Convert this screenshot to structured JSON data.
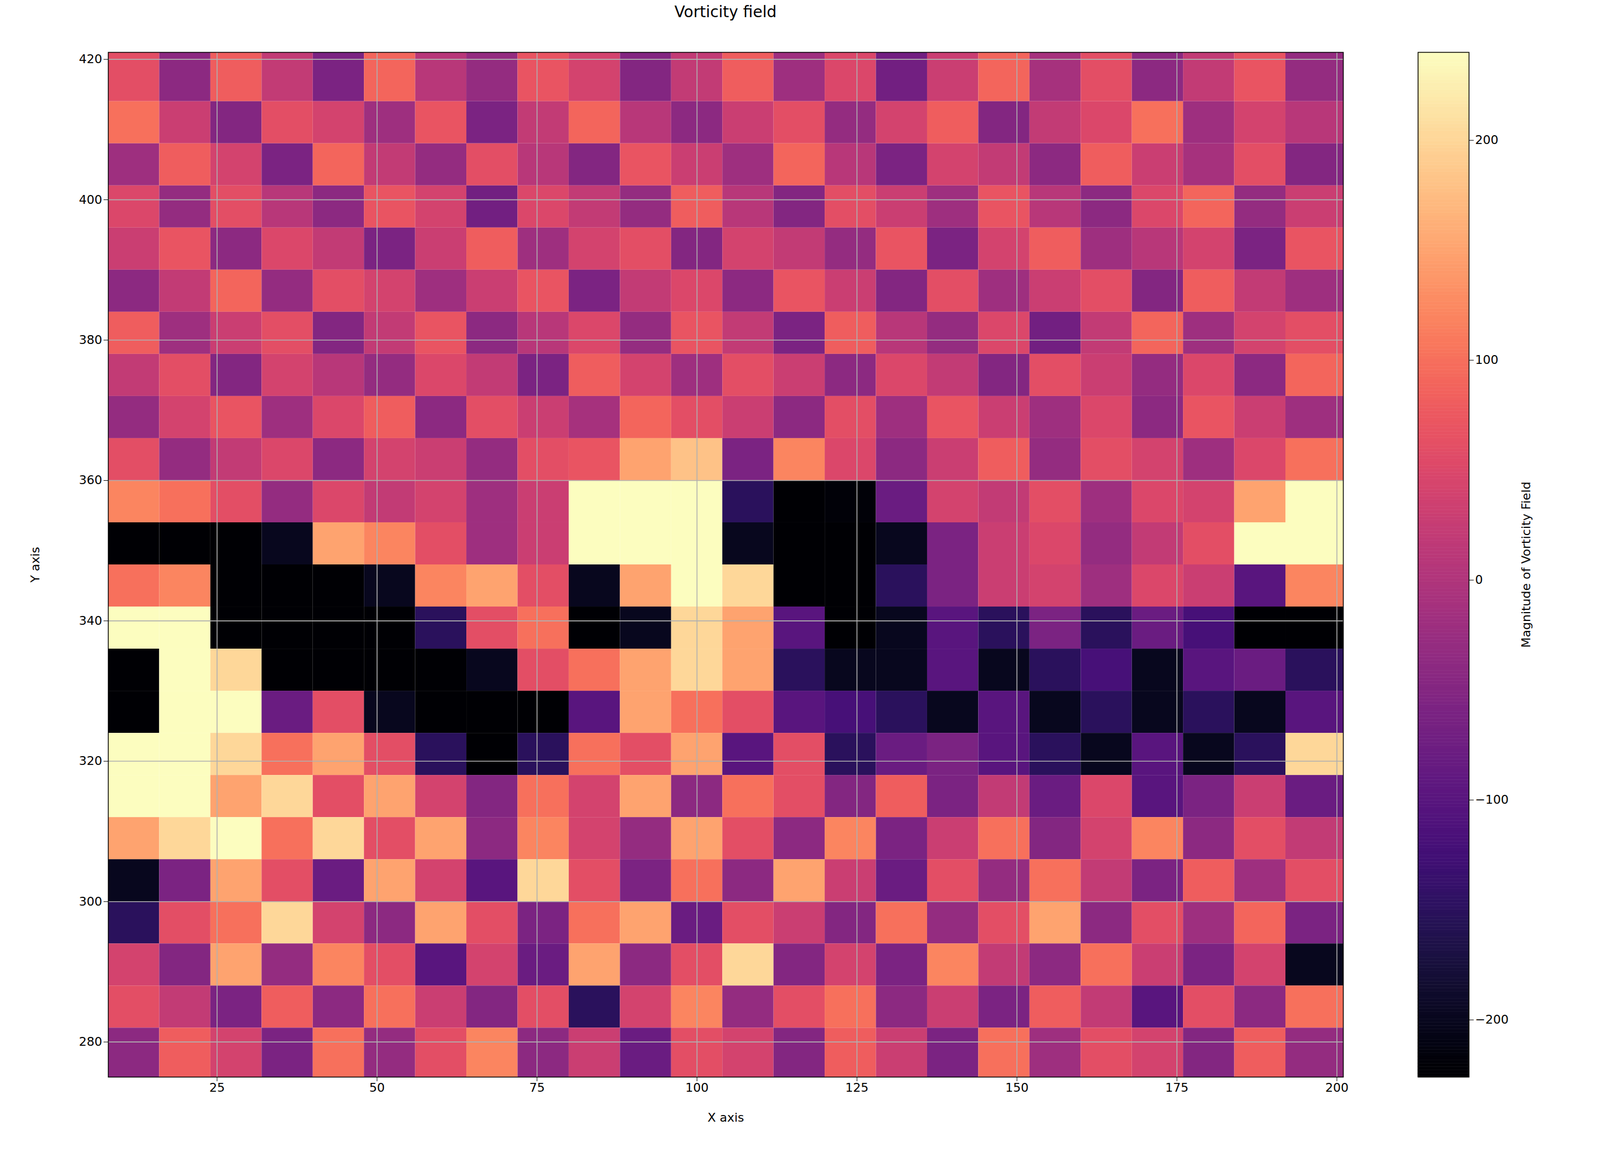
{
  "chart_data": {
    "type": "heatmap",
    "title": "Vorticity field",
    "x_label": "X axis",
    "y_label": "Y axis",
    "xlim": [
      8,
      201
    ],
    "ylim": [
      275,
      421
    ],
    "xticks": [
      25,
      50,
      75,
      100,
      125,
      150,
      175,
      200
    ],
    "yticks": [
      280,
      300,
      320,
      340,
      360,
      380,
      400,
      420
    ],
    "grid": true,
    "color": "magma",
    "color_label": "Magnitude of Vorticity Field",
    "color_range": [
      -226,
      240
    ],
    "color_ticks": [
      -200,
      -100,
      0,
      100,
      200
    ],
    "x_edges": [
      8,
      16,
      24,
      32,
      40,
      48,
      56,
      64,
      72,
      80,
      88,
      96,
      104,
      112,
      120,
      128,
      136,
      144,
      152,
      160,
      168,
      176,
      184,
      192,
      201
    ],
    "y_edges": [
      421,
      414,
      408,
      402,
      396,
      390,
      384,
      378,
      372,
      366,
      360,
      354,
      348,
      342,
      336,
      330,
      324,
      318,
      312,
      306,
      300,
      294,
      288,
      282,
      275
    ],
    "values": [
      [
        60,
        -40,
        80,
        20,
        -60,
        90,
        10,
        -30,
        70,
        40,
        -50,
        20,
        80,
        -20,
        50,
        -70,
        30,
        90,
        -10,
        60,
        -40,
        20,
        70,
        -30
      ],
      [
        100,
        30,
        -50,
        60,
        40,
        -20,
        70,
        -60,
        20,
        90,
        10,
        -40,
        30,
        60,
        -30,
        40,
        80,
        -50,
        20,
        50,
        100,
        -20,
        40,
        10
      ],
      [
        -20,
        80,
        40,
        -60,
        90,
        20,
        -30,
        60,
        10,
        -50,
        70,
        30,
        -20,
        90,
        10,
        -60,
        40,
        20,
        -40,
        80,
        30,
        -10,
        60,
        -50
      ],
      [
        50,
        -30,
        60,
        10,
        -40,
        70,
        40,
        -70,
        50,
        20,
        -30,
        80,
        10,
        -50,
        60,
        30,
        -20,
        70,
        10,
        -40,
        50,
        90,
        -30,
        30
      ],
      [
        30,
        70,
        -40,
        50,
        20,
        -60,
        30,
        80,
        -20,
        40,
        60,
        -50,
        40,
        20,
        -30,
        70,
        -60,
        40,
        80,
        -20,
        10,
        40,
        -60,
        70
      ],
      [
        -40,
        20,
        90,
        -30,
        60,
        40,
        -20,
        30,
        70,
        -60,
        20,
        50,
        -40,
        70,
        30,
        -50,
        60,
        -20,
        30,
        60,
        -50,
        80,
        20,
        -20
      ],
      [
        80,
        -20,
        30,
        60,
        -50,
        20,
        70,
        -40,
        10,
        50,
        -30,
        70,
        20,
        -60,
        80,
        10,
        -30,
        50,
        -70,
        20,
        90,
        -20,
        40,
        60
      ],
      [
        20,
        60,
        -50,
        40,
        10,
        -30,
        50,
        20,
        -60,
        80,
        40,
        -20,
        60,
        30,
        -40,
        50,
        20,
        -50,
        60,
        30,
        -30,
        50,
        -40,
        90
      ],
      [
        -30,
        40,
        70,
        -20,
        50,
        80,
        -40,
        60,
        30,
        -10,
        90,
        60,
        30,
        -40,
        60,
        -20,
        70,
        30,
        -20,
        50,
        -40,
        70,
        30,
        -20
      ],
      [
        60,
        -30,
        20,
        50,
        -40,
        40,
        30,
        -30,
        60,
        70,
        150,
        180,
        -60,
        120,
        50,
        -40,
        30,
        80,
        -30,
        60,
        40,
        -20,
        50,
        100
      ],
      [
        120,
        100,
        60,
        -30,
        50,
        20,
        40,
        -20,
        30,
        240,
        240,
        240,
        -150,
        -240,
        -220,
        -80,
        40,
        20,
        60,
        -20,
        50,
        40,
        150,
        240
      ],
      [
        -240,
        -240,
        -240,
        -200,
        150,
        120,
        60,
        -20,
        30,
        240,
        240,
        240,
        -200,
        -240,
        -240,
        -200,
        -60,
        30,
        50,
        -30,
        20,
        60,
        240,
        240
      ],
      [
        100,
        120,
        -240,
        -240,
        -240,
        -200,
        120,
        150,
        60,
        -200,
        150,
        240,
        200,
        -240,
        -240,
        -150,
        -60,
        30,
        40,
        -20,
        50,
        30,
        -100,
        120
      ],
      [
        240,
        240,
        -240,
        -240,
        -240,
        -240,
        -150,
        60,
        100,
        -240,
        -200,
        200,
        150,
        -100,
        -240,
        -200,
        -100,
        -150,
        -60,
        -150,
        -80,
        -120,
        -240,
        -240
      ],
      [
        -240,
        240,
        200,
        -240,
        -240,
        -240,
        -240,
        -200,
        60,
        100,
        150,
        200,
        150,
        -150,
        -200,
        -200,
        -100,
        -200,
        -150,
        -120,
        -200,
        -100,
        -80,
        -150
      ],
      [
        -240,
        240,
        240,
        -80,
        60,
        -200,
        -240,
        -240,
        -240,
        -100,
        150,
        100,
        60,
        -100,
        -120,
        -150,
        -200,
        -100,
        -200,
        -150,
        -200,
        -150,
        -200,
        -100
      ],
      [
        240,
        240,
        200,
        100,
        150,
        60,
        -150,
        -240,
        -150,
        100,
        60,
        150,
        -100,
        60,
        -150,
        -80,
        -60,
        -100,
        -150,
        -200,
        -100,
        -200,
        -150,
        200
      ],
      [
        240,
        240,
        150,
        200,
        60,
        150,
        40,
        -50,
        100,
        40,
        150,
        -40,
        100,
        60,
        -50,
        80,
        -60,
        20,
        -80,
        50,
        -100,
        -60,
        30,
        -80
      ],
      [
        150,
        200,
        240,
        100,
        200,
        60,
        150,
        -40,
        120,
        40,
        -30,
        150,
        60,
        -40,
        120,
        -60,
        30,
        100,
        -50,
        40,
        120,
        -40,
        60,
        20
      ],
      [
        -200,
        -60,
        150,
        60,
        -80,
        150,
        40,
        -100,
        200,
        60,
        -60,
        100,
        -40,
        150,
        30,
        -80,
        60,
        -30,
        100,
        20,
        -60,
        80,
        -20,
        60
      ],
      [
        -150,
        60,
        100,
        200,
        40,
        -40,
        150,
        60,
        -60,
        100,
        150,
        -80,
        60,
        30,
        -50,
        100,
        -30,
        60,
        150,
        -40,
        60,
        -20,
        90,
        -60
      ],
      [
        40,
        -50,
        150,
        -30,
        120,
        60,
        -100,
        40,
        -80,
        150,
        -40,
        60,
        200,
        -50,
        40,
        -60,
        120,
        20,
        -40,
        100,
        30,
        -60,
        40,
        -200
      ],
      [
        60,
        20,
        -60,
        80,
        -40,
        100,
        30,
        -50,
        60,
        -150,
        40,
        120,
        -30,
        60,
        100,
        -40,
        30,
        -60,
        80,
        20,
        -100,
        60,
        -40,
        100
      ],
      [
        -40,
        80,
        40,
        -60,
        100,
        -30,
        60,
        120,
        -40,
        30,
        -80,
        60,
        40,
        -50,
        80,
        30,
        -60,
        100,
        -20,
        60,
        40,
        -50,
        80,
        -30
      ]
    ]
  }
}
